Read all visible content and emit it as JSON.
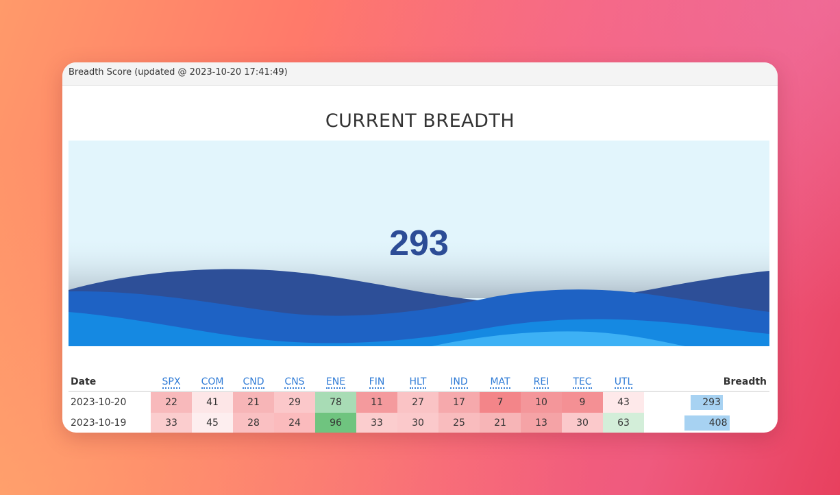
{
  "panel": {
    "header": "Breadth Score (updated @ 2023-10-20 17:41:49)"
  },
  "hero": {
    "title": "CURRENT BREADTH",
    "score": "293"
  },
  "table": {
    "date_header": "Date",
    "breadth_header": "Breadth",
    "sectors": [
      "SPX",
      "COM",
      "CND",
      "CNS",
      "ENE",
      "FIN",
      "HLT",
      "IND",
      "MAT",
      "REI",
      "TEC",
      "UTL"
    ],
    "rows": [
      {
        "date": "2023-10-20",
        "values": [
          22,
          41,
          21,
          29,
          78,
          11,
          27,
          17,
          7,
          10,
          9,
          43
        ],
        "breadth": 293
      },
      {
        "date": "2023-10-19",
        "values": [
          33,
          45,
          28,
          24,
          96,
          33,
          30,
          25,
          21,
          13,
          30,
          63
        ],
        "breadth": 408
      }
    ],
    "breadth_bar_pct": [
      0.47,
      0.66
    ]
  },
  "colors": {
    "cells": [
      [
        "#f8b9bb",
        "#fde6e7",
        "#f7b5b7",
        "#fbc8ca",
        "#a8dcb5",
        "#f49a9d",
        "#fac3c5",
        "#f6a9ac",
        "#f38589",
        "#f4969a",
        "#f49094",
        "#fee9ea"
      ],
      [
        "#fbcdce",
        "#fdeeef",
        "#fac0c2",
        "#fbbbbd",
        "#6fc47f",
        "#fbcdce",
        "#fbc9cb",
        "#f9bcbe",
        "#f7b5b7",
        "#f5a3a6",
        "#fbc9cb",
        "#d3eed9"
      ]
    ],
    "accent": "#2c4c96",
    "link": "#2f7bd6"
  }
}
